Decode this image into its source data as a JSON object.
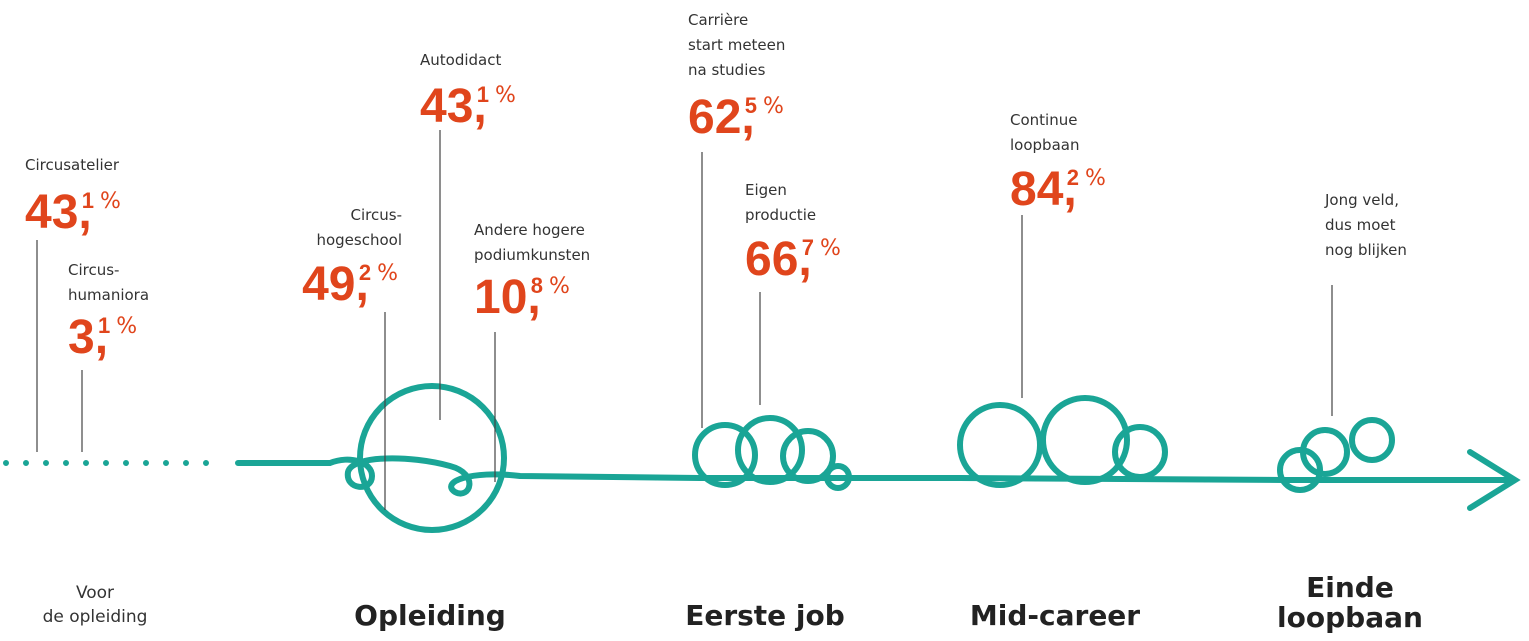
{
  "annotations": [
    {
      "label": [
        "Circusatelier"
      ],
      "whole": "43,",
      "decimal": "1",
      "unit": "%"
    },
    {
      "label": [
        "Circus-",
        "humaniora"
      ],
      "whole": "3,",
      "decimal": "1",
      "unit": "%"
    },
    {
      "label": [
        "Circus-",
        "hogeschool"
      ],
      "whole": "49,",
      "decimal": "2",
      "unit": "%"
    },
    {
      "label": [
        "Autodidact"
      ],
      "whole": "43,",
      "decimal": "1",
      "unit": "%"
    },
    {
      "label": [
        "Andere hogere",
        "podiumkunsten"
      ],
      "whole": "10,",
      "decimal": "8",
      "unit": "%"
    },
    {
      "label": [
        "Carrière",
        "start meteen",
        "na studies"
      ],
      "whole": "62,",
      "decimal": "5",
      "unit": "%"
    },
    {
      "label": [
        "Eigen",
        "productie"
      ],
      "whole": "66,",
      "decimal": "7",
      "unit": "%"
    },
    {
      "label": [
        "Continue",
        "loopbaan"
      ],
      "whole": "84,",
      "decimal": "2",
      "unit": "%"
    },
    {
      "label": [
        "Jong veld,",
        "dus moet",
        "nog blijken"
      ]
    }
  ],
  "stages": [
    {
      "label": [
        "Voor",
        "de opleiding"
      ]
    },
    {
      "label": [
        "Opleiding"
      ]
    },
    {
      "label": [
        "Eerste job"
      ]
    },
    {
      "label": [
        "Mid-career"
      ]
    },
    {
      "label": [
        "Einde",
        "loopbaan"
      ]
    }
  ]
}
